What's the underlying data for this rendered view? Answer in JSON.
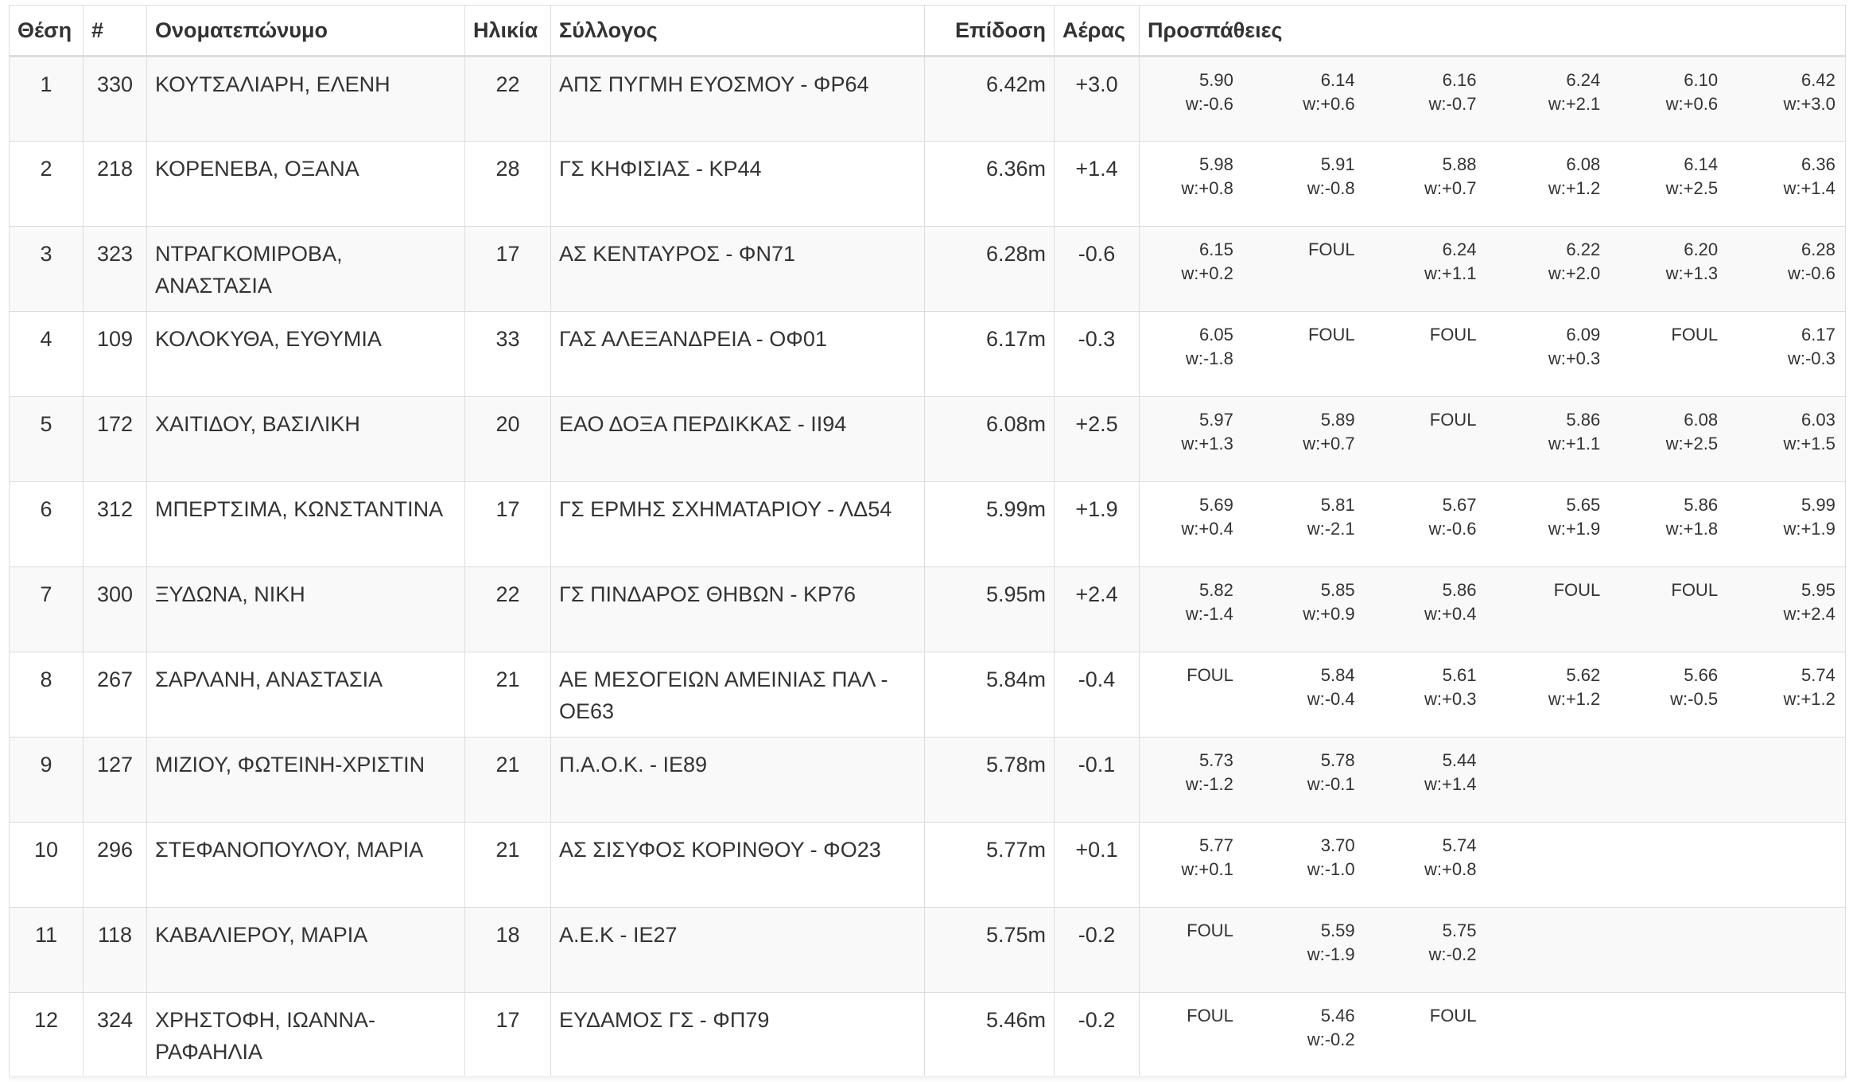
{
  "headers": {
    "place": "Θέση",
    "bib": "#",
    "name": "Ονοματεπώνυμο",
    "age": "Ηλικία",
    "club": "Σύλλογος",
    "mark": "Επίδοση",
    "wind": "Αέρας",
    "attempts": "Προσπάθειες"
  },
  "rows": [
    {
      "place": "1",
      "bib": "330",
      "name": "ΚΟΥΤΣΑΛΙΑΡΗ, ΕΛΕΝΗ",
      "age": "22",
      "club": "ΑΠΣ ΠΥΓΜΗ ΕΥΟΣΜΟΥ - ΦΡ64",
      "mark": "6.42m",
      "wind": "+3.0",
      "attempts": [
        {
          "mark": "5.90",
          "wind": "w:-0.6"
        },
        {
          "mark": "6.14",
          "wind": "w:+0.6"
        },
        {
          "mark": "6.16",
          "wind": "w:-0.7"
        },
        {
          "mark": "6.24",
          "wind": "w:+2.1"
        },
        {
          "mark": "6.10",
          "wind": "w:+0.6"
        },
        {
          "mark": "6.42",
          "wind": "w:+3.0"
        }
      ]
    },
    {
      "place": "2",
      "bib": "218",
      "name": "ΚΟΡΕΝΕΒΑ, ΟΞΑΝΑ",
      "age": "28",
      "club": "ΓΣ ΚΗΦΙΣΙΑΣ - ΚΡ44",
      "mark": "6.36m",
      "wind": "+1.4",
      "attempts": [
        {
          "mark": "5.98",
          "wind": "w:+0.8"
        },
        {
          "mark": "5.91",
          "wind": "w:-0.8"
        },
        {
          "mark": "5.88",
          "wind": "w:+0.7"
        },
        {
          "mark": "6.08",
          "wind": "w:+1.2"
        },
        {
          "mark": "6.14",
          "wind": "w:+2.5"
        },
        {
          "mark": "6.36",
          "wind": "w:+1.4"
        }
      ]
    },
    {
      "place": "3",
      "bib": "323",
      "name": "ΝΤΡΑΓΚΟΜΙΡΟΒΑ, ΑΝΑΣΤΑΣΙΑ",
      "age": "17",
      "club": "ΑΣ ΚΕΝΤΑΥΡΟΣ - ΦΝ71",
      "mark": "6.28m",
      "wind": "-0.6",
      "attempts": [
        {
          "mark": "6.15",
          "wind": "w:+0.2"
        },
        {
          "mark": "FOUL",
          "wind": ""
        },
        {
          "mark": "6.24",
          "wind": "w:+1.1"
        },
        {
          "mark": "6.22",
          "wind": "w:+2.0"
        },
        {
          "mark": "6.20",
          "wind": "w:+1.3"
        },
        {
          "mark": "6.28",
          "wind": "w:-0.6"
        }
      ]
    },
    {
      "place": "4",
      "bib": "109",
      "name": "ΚΟΛΟΚΥΘΑ, ΕΥΘΥΜΙΑ",
      "age": "33",
      "club": "ΓΑΣ ΑΛΕΞΑΝΔΡΕΙΑ - ΟΦ01",
      "mark": "6.17m",
      "wind": "-0.3",
      "attempts": [
        {
          "mark": "6.05",
          "wind": "w:-1.8"
        },
        {
          "mark": "FOUL",
          "wind": ""
        },
        {
          "mark": "FOUL",
          "wind": ""
        },
        {
          "mark": "6.09",
          "wind": "w:+0.3"
        },
        {
          "mark": "FOUL",
          "wind": ""
        },
        {
          "mark": "6.17",
          "wind": "w:-0.3"
        }
      ]
    },
    {
      "place": "5",
      "bib": "172",
      "name": "ΧΑΙΤΙΔΟΥ, ΒΑΣΙΛΙΚΗ",
      "age": "20",
      "club": "ΕΑΟ ΔΟΞΑ ΠΕΡΔΙΚΚΑΣ - ΙΙ94",
      "mark": "6.08m",
      "wind": "+2.5",
      "attempts": [
        {
          "mark": "5.97",
          "wind": "w:+1.3"
        },
        {
          "mark": "5.89",
          "wind": "w:+0.7"
        },
        {
          "mark": "FOUL",
          "wind": ""
        },
        {
          "mark": "5.86",
          "wind": "w:+1.1"
        },
        {
          "mark": "6.08",
          "wind": "w:+2.5"
        },
        {
          "mark": "6.03",
          "wind": "w:+1.5"
        }
      ]
    },
    {
      "place": "6",
      "bib": "312",
      "name": "ΜΠΕΡΤΣΙΜΑ, ΚΩΝΣΤΑΝΤΙΝΑ",
      "age": "17",
      "club": "ΓΣ ΕΡΜΗΣ ΣΧΗΜΑΤΑΡΙΟΥ - ΛΔ54",
      "mark": "5.99m",
      "wind": "+1.9",
      "attempts": [
        {
          "mark": "5.69",
          "wind": "w:+0.4"
        },
        {
          "mark": "5.81",
          "wind": "w:-2.1"
        },
        {
          "mark": "5.67",
          "wind": "w:-0.6"
        },
        {
          "mark": "5.65",
          "wind": "w:+1.9"
        },
        {
          "mark": "5.86",
          "wind": "w:+1.8"
        },
        {
          "mark": "5.99",
          "wind": "w:+1.9"
        }
      ]
    },
    {
      "place": "7",
      "bib": "300",
      "name": "ΞΥΔΩΝΑ, ΝΙΚΗ",
      "age": "22",
      "club": "ΓΣ ΠΙΝΔΑΡΟΣ ΘΗΒΩΝ - ΚΡ76",
      "mark": "5.95m",
      "wind": "+2.4",
      "attempts": [
        {
          "mark": "5.82",
          "wind": "w:-1.4"
        },
        {
          "mark": "5.85",
          "wind": "w:+0.9"
        },
        {
          "mark": "5.86",
          "wind": "w:+0.4"
        },
        {
          "mark": "FOUL",
          "wind": ""
        },
        {
          "mark": "FOUL",
          "wind": ""
        },
        {
          "mark": "5.95",
          "wind": "w:+2.4"
        }
      ]
    },
    {
      "place": "8",
      "bib": "267",
      "name": "ΣΑΡΛΑΝΗ, ΑΝΑΣΤΑΣΙΑ",
      "age": "21",
      "club": "ΑΕ ΜΕΣΟΓΕΙΩΝ ΑΜΕΙΝΙΑΣ ΠΑΛ - ΟΕ63",
      "mark": "5.84m",
      "wind": "-0.4",
      "attempts": [
        {
          "mark": "FOUL",
          "wind": ""
        },
        {
          "mark": "5.84",
          "wind": "w:-0.4"
        },
        {
          "mark": "5.61",
          "wind": "w:+0.3"
        },
        {
          "mark": "5.62",
          "wind": "w:+1.2"
        },
        {
          "mark": "5.66",
          "wind": "w:-0.5"
        },
        {
          "mark": "5.74",
          "wind": "w:+1.2"
        }
      ]
    },
    {
      "place": "9",
      "bib": "127",
      "name": "ΜΙΖΙΟΥ, ΦΩΤΕΙΝΗ-ΧΡΙΣΤΙΝ",
      "age": "21",
      "club": "Π.Α.Ο.Κ. - ΙΕ89",
      "mark": "5.78m",
      "wind": "-0.1",
      "attempts": [
        {
          "mark": "5.73",
          "wind": "w:-1.2"
        },
        {
          "mark": "5.78",
          "wind": "w:-0.1"
        },
        {
          "mark": "5.44",
          "wind": "w:+1.4"
        }
      ]
    },
    {
      "place": "10",
      "bib": "296",
      "name": "ΣΤΕΦΑΝΟΠΟΥΛΟΥ, ΜΑΡΙΑ",
      "age": "21",
      "club": "ΑΣ ΣΙΣΥΦΟΣ ΚΟΡΙΝΘΟΥ - ΦΟ23",
      "mark": "5.77m",
      "wind": "+0.1",
      "attempts": [
        {
          "mark": "5.77",
          "wind": "w:+0.1"
        },
        {
          "mark": "3.70",
          "wind": "w:-1.0"
        },
        {
          "mark": "5.74",
          "wind": "w:+0.8"
        }
      ]
    },
    {
      "place": "11",
      "bib": "118",
      "name": "ΚΑΒΑΛΙΕΡΟΥ, ΜΑΡΙΑ",
      "age": "18",
      "club": "Α.Ε.Κ - ΙΕ27",
      "mark": "5.75m",
      "wind": "-0.2",
      "attempts": [
        {
          "mark": "FOUL",
          "wind": ""
        },
        {
          "mark": "5.59",
          "wind": "w:-1.9"
        },
        {
          "mark": "5.75",
          "wind": "w:-0.2"
        }
      ]
    },
    {
      "place": "12",
      "bib": "324",
      "name": "ΧΡΗΣΤΟΦΗ, ΙΩΑΝΝΑ-ΡΑΦΑΗΛΙΑ",
      "age": "17",
      "club": "ΕΥΔΑΜΟΣ ΓΣ - ΦΠ79",
      "mark": "5.46m",
      "wind": "-0.2",
      "attempts": [
        {
          "mark": "FOUL",
          "wind": ""
        },
        {
          "mark": "5.46",
          "wind": "w:-0.2"
        },
        {
          "mark": "FOUL",
          "wind": ""
        }
      ]
    }
  ]
}
